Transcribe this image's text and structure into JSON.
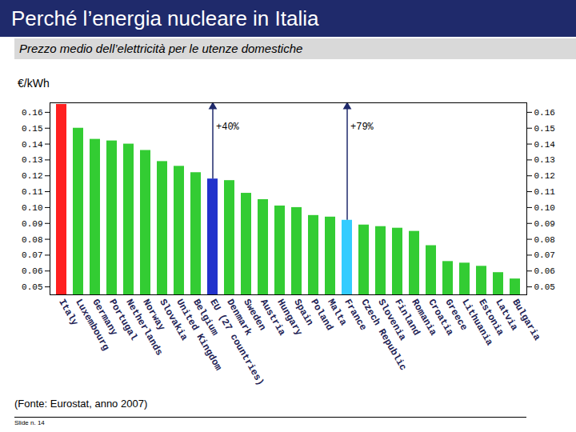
{
  "chart_data": {
    "type": "bar",
    "title": "Perché l’energia nucleare in Italia",
    "subtitle": "Prezzo medio dell’elettricità per le utenze domestiche",
    "y_label": "€/kWh",
    "caption": "(Fonte: Eurostat, anno 2007)",
    "footer": "Slide n. 14",
    "categories": [
      "Italy",
      "Luxembourg",
      "Germany",
      "Portugal",
      "Netherlands",
      "Norway",
      "Slovakia",
      "United Kingdom",
      "Belgium",
      "EU (27 countries)",
      "Denmark",
      "Sweden",
      "Austria",
      "Hungary",
      "Spain",
      "Poland",
      "Malta",
      "France",
      "Czech Republic",
      "Slovenia",
      "Finland",
      "Romania",
      "Croatia",
      "Greece",
      "Lithuania",
      "Estonia",
      "Latvia",
      "Bulgaria"
    ],
    "values": [
      0.165,
      0.15,
      0.143,
      0.142,
      0.14,
      0.136,
      0.129,
      0.126,
      0.122,
      0.118,
      0.117,
      0.109,
      0.105,
      0.101,
      0.1,
      0.095,
      0.094,
      0.092,
      0.089,
      0.088,
      0.087,
      0.085,
      0.076,
      0.066,
      0.065,
      0.063,
      0.059,
      0.055
    ],
    "colors": [
      "#ff2020",
      "#33cc33",
      "#33cc33",
      "#33cc33",
      "#33cc33",
      "#33cc33",
      "#33cc33",
      "#33cc33",
      "#33cc33",
      "#2233cc",
      "#33cc33",
      "#33cc33",
      "#33cc33",
      "#33cc33",
      "#33cc33",
      "#33cc33",
      "#33cc33",
      "#33ccff",
      "#33cc33",
      "#33cc33",
      "#33cc33",
      "#33cc33",
      "#33cc33",
      "#33cc33",
      "#33cc33",
      "#33cc33",
      "#33cc33",
      "#33cc33"
    ],
    "ylim": [
      0.045,
      0.166
    ],
    "yticks": [
      0.05,
      0.06,
      0.07,
      0.08,
      0.09,
      {
        "value": 0.1,
        "label": "0.10"
      },
      0.11,
      0.12,
      0.13,
      0.14,
      0.15,
      0.16
    ],
    "annotations": [
      {
        "text": "+40%",
        "from": "EU (27 countries)",
        "to": "Italy"
      },
      {
        "text": "+79%",
        "from": "France",
        "to": "Italy"
      }
    ],
    "grid": false
  }
}
